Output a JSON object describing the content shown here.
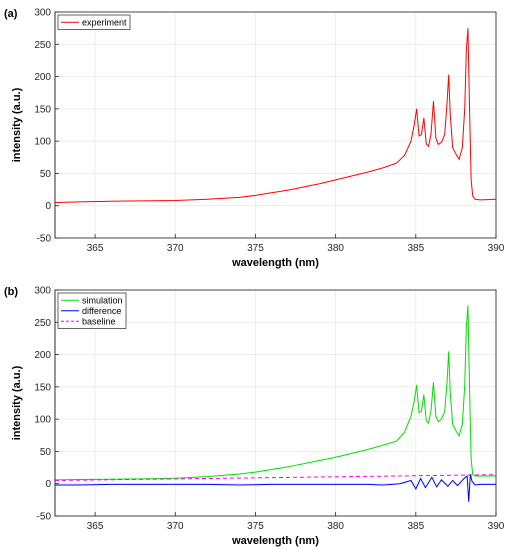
{
  "chart_data": [
    {
      "type": "line",
      "panel_label": "(a)",
      "xlabel": "wavelength (nm)",
      "ylabel": "intensity (a.u.)",
      "xlim": [
        362.5,
        390
      ],
      "ylim": [
        -50,
        300
      ],
      "xticks": [
        365,
        370,
        375,
        380,
        385,
        390
      ],
      "yticks": [
        -50,
        0,
        50,
        100,
        150,
        200,
        250,
        300
      ],
      "grid": true,
      "legend_position": "top-left",
      "series": [
        {
          "name": "experiment",
          "color": "#ff0000",
          "style": "solid",
          "x": [
            362.5,
            364,
            366,
            368,
            370,
            372,
            374,
            375,
            376,
            377,
            378,
            379,
            380,
            381,
            382,
            383,
            383.8,
            384.3,
            384.7,
            384.9,
            385.05,
            385.2,
            385.35,
            385.5,
            385.65,
            385.8,
            385.95,
            386.1,
            386.25,
            386.4,
            386.6,
            386.8,
            386.95,
            387.05,
            387.15,
            387.3,
            387.5,
            387.7,
            387.9,
            388.05,
            388.15,
            388.25,
            388.35,
            388.45,
            388.55,
            388.7,
            389,
            389.5,
            390
          ],
          "y": [
            5,
            6,
            7,
            7.5,
            8,
            10,
            13,
            16,
            20,
            24,
            29,
            34,
            40,
            46,
            52,
            59,
            66,
            78,
            100,
            125,
            150,
            108,
            110,
            136,
            96,
            92,
            112,
            162,
            105,
            95,
            98,
            110,
            160,
            203,
            140,
            90,
            80,
            72,
            90,
            150,
            240,
            275,
            150,
            40,
            15,
            10,
            9,
            9.5,
            10
          ]
        }
      ]
    },
    {
      "type": "line",
      "panel_label": "(b)",
      "xlabel": "wavelength (nm)",
      "ylabel": "intensity (a.u.)",
      "xlim": [
        362.5,
        390
      ],
      "ylim": [
        -50,
        300
      ],
      "xticks": [
        365,
        370,
        375,
        380,
        385,
        390
      ],
      "yticks": [
        -50,
        0,
        50,
        100,
        150,
        200,
        250,
        300
      ],
      "grid": true,
      "legend_position": "top-left",
      "series": [
        {
          "name": "simulation",
          "color": "#00e000",
          "style": "solid",
          "x": [
            362.5,
            364,
            366,
            368,
            370,
            372,
            374,
            375,
            376,
            377,
            378,
            379,
            380,
            381,
            382,
            383,
            383.8,
            384.3,
            384.7,
            384.9,
            385.05,
            385.2,
            385.35,
            385.5,
            385.65,
            385.8,
            385.95,
            386.1,
            386.25,
            386.4,
            386.6,
            386.8,
            386.95,
            387.05,
            387.15,
            387.3,
            387.5,
            387.7,
            387.9,
            388.05,
            388.15,
            388.25,
            388.35,
            388.45,
            388.55,
            388.7,
            389,
            389.5,
            390
          ],
          "y": [
            6,
            6.5,
            7,
            7.5,
            8.5,
            11,
            15,
            18,
            22,
            26,
            31,
            36,
            41,
            47,
            53,
            60,
            66,
            80,
            105,
            128,
            153,
            110,
            112,
            138,
            98,
            94,
            114,
            157,
            104,
            96,
            100,
            112,
            158,
            205,
            140,
            92,
            82,
            74,
            92,
            152,
            242,
            276,
            150,
            38,
            14,
            12,
            12,
            12,
            12
          ]
        },
        {
          "name": "difference",
          "color": "#0000ff",
          "style": "solid",
          "x": [
            362.5,
            364,
            366,
            368,
            370,
            372,
            374,
            376,
            378,
            380,
            382,
            383,
            384,
            384.7,
            385,
            385.3,
            385.6,
            386,
            386.3,
            386.6,
            387,
            387.3,
            387.6,
            388,
            388.2,
            388.3,
            388.4,
            388.5,
            388.7,
            389,
            389.5,
            390
          ],
          "y": [
            -2,
            -2,
            -1,
            -1,
            -1,
            -1,
            -2,
            -1,
            -1,
            -1,
            -1,
            -2,
            0,
            5,
            -8,
            8,
            -6,
            10,
            -5,
            6,
            -4,
            5,
            -3,
            8,
            12,
            -28,
            15,
            4,
            -2,
            -1,
            -1,
            -1
          ]
        },
        {
          "name": "baseline",
          "color": "#ff00ff",
          "style": "dashed",
          "x": [
            362.5,
            390
          ],
          "y": [
            5,
            14
          ]
        }
      ]
    }
  ]
}
